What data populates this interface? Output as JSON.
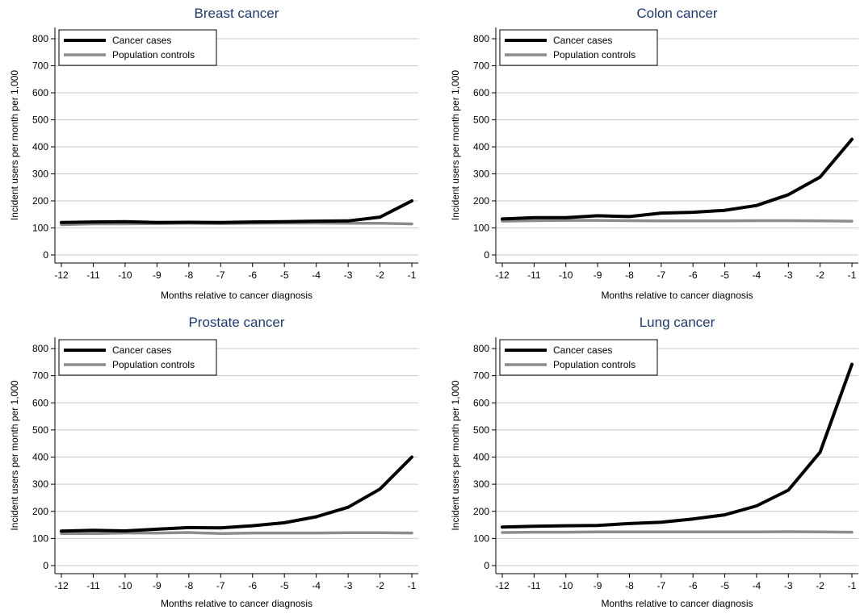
{
  "chart_data": [
    {
      "type": "line",
      "title": "Breast cancer",
      "xlabel": "Months relative to cancer diagnosis",
      "ylabel": "Incident users per month per 1,000",
      "x": [
        -12,
        -11,
        -10,
        -9,
        -8,
        -7,
        -6,
        -5,
        -4,
        -3,
        -2,
        -1
      ],
      "ylim": [
        0,
        800
      ],
      "yticks": [
        0,
        100,
        200,
        300,
        400,
        500,
        600,
        700,
        800
      ],
      "grid": true,
      "legend_position": "top-left",
      "series": [
        {
          "name": "Cancer cases",
          "color": "#000000",
          "values": [
            120,
            122,
            123,
            120,
            121,
            120,
            122,
            123,
            125,
            126,
            140,
            200
          ]
        },
        {
          "name": "Population controls",
          "color": "#8c8c8c",
          "values": [
            112,
            115,
            115,
            116,
            117,
            116,
            117,
            118,
            118,
            117,
            117,
            115
          ]
        }
      ]
    },
    {
      "type": "line",
      "title": "Colon cancer",
      "xlabel": "Months relative to cancer diagnosis",
      "ylabel": "Incident users per month per 1,000",
      "x": [
        -12,
        -11,
        -10,
        -9,
        -8,
        -7,
        -6,
        -5,
        -4,
        -3,
        -2,
        -1
      ],
      "ylim": [
        0,
        800
      ],
      "yticks": [
        0,
        100,
        200,
        300,
        400,
        500,
        600,
        700,
        800
      ],
      "grid": true,
      "legend_position": "top-left",
      "series": [
        {
          "name": "Cancer cases",
          "color": "#000000",
          "values": [
            133,
            138,
            138,
            145,
            142,
            155,
            158,
            165,
            183,
            223,
            288,
            428
          ]
        },
        {
          "name": "Population controls",
          "color": "#8c8c8c",
          "values": [
            125,
            127,
            128,
            128,
            127,
            126,
            126,
            126,
            127,
            127,
            126,
            125
          ]
        }
      ]
    },
    {
      "type": "line",
      "title": "Prostate cancer",
      "xlabel": "Months relative to cancer diagnosis",
      "ylabel": "Incident users per month per 1,000",
      "x": [
        -12,
        -11,
        -10,
        -9,
        -8,
        -7,
        -6,
        -5,
        -4,
        -3,
        -2,
        -1
      ],
      "ylim": [
        0,
        800
      ],
      "yticks": [
        0,
        100,
        200,
        300,
        400,
        500,
        600,
        700,
        800
      ],
      "grid": true,
      "legend_position": "top-left",
      "series": [
        {
          "name": "Cancer cases",
          "color": "#000000",
          "values": [
            127,
            130,
            128,
            134,
            140,
            139,
            147,
            158,
            180,
            215,
            282,
            400
          ]
        },
        {
          "name": "Population controls",
          "color": "#8c8c8c",
          "values": [
            118,
            118,
            120,
            120,
            122,
            118,
            120,
            120,
            120,
            121,
            121,
            120
          ]
        }
      ]
    },
    {
      "type": "line",
      "title": "Lung cancer",
      "xlabel": "Months relative to cancer diagnosis",
      "ylabel": "Incident users per month per 1,000",
      "x": [
        -12,
        -11,
        -10,
        -9,
        -8,
        -7,
        -6,
        -5,
        -4,
        -3,
        -2,
        -1
      ],
      "ylim": [
        0,
        800
      ],
      "yticks": [
        0,
        100,
        200,
        300,
        400,
        500,
        600,
        700,
        800
      ],
      "grid": true,
      "legend_position": "top-left",
      "series": [
        {
          "name": "Cancer cases",
          "color": "#000000",
          "values": [
            142,
            145,
            147,
            148,
            155,
            160,
            172,
            187,
            220,
            278,
            418,
            742
          ]
        },
        {
          "name": "Population controls",
          "color": "#8c8c8c",
          "values": [
            122,
            123,
            123,
            124,
            124,
            124,
            124,
            124,
            124,
            125,
            124,
            123
          ]
        }
      ]
    }
  ]
}
